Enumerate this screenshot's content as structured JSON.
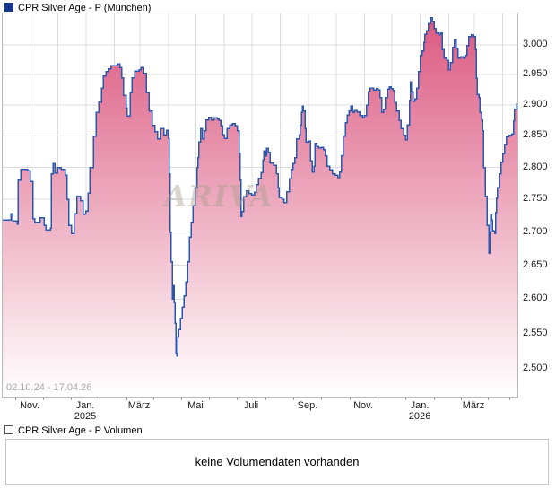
{
  "header": {
    "title": "CPR Silver Age - P (München)",
    "icon_color": "#16368c"
  },
  "volume": {
    "title": "CPR Silver Age - P Volumen",
    "message": "keine Volumendaten vorhanden"
  },
  "chart_data": {
    "type": "area",
    "title": "CPR Silver Age - P (München)",
    "date_range_label": "02.10.24 - 17.04.26",
    "start_date": "2024-10-02",
    "end_date": "2026-04-17",
    "scale": "log",
    "grid": true,
    "legend_position": "none",
    "watermark": "ARIVA",
    "line_color": "#2a56ae",
    "fill_top_color": "#dc5a82",
    "fill_bottom_color": "#ffffff",
    "grid_color": "#dcdcdc",
    "ylim": [
      2.4611,
      3.0533
    ],
    "y_ticks": [
      {
        "v": 3.0,
        "label": "3.000"
      },
      {
        "v": 2.95,
        "label": "2.950"
      },
      {
        "v": 2.9,
        "label": "2.900"
      },
      {
        "v": 2.85,
        "label": "2.850"
      },
      {
        "v": 2.8,
        "label": "2.800"
      },
      {
        "v": 2.75,
        "label": "2.750"
      },
      {
        "v": 2.7,
        "label": "2.700"
      },
      {
        "v": 2.65,
        "label": "2.650"
      },
      {
        "v": 2.6,
        "label": "2.600"
      },
      {
        "v": 2.55,
        "label": "2.550"
      },
      {
        "v": 2.5,
        "label": "2.500"
      }
    ],
    "x_ticks": [
      {
        "date": "2024-11-01",
        "label": "Nov."
      },
      {
        "date": "2025-01-01",
        "label": "Jan.",
        "sub": "2025"
      },
      {
        "date": "2025-03-01",
        "label": "März"
      },
      {
        "date": "2025-05-01",
        "label": "Mai"
      },
      {
        "date": "2025-07-01",
        "label": "Juli"
      },
      {
        "date": "2025-09-01",
        "label": "Sep."
      },
      {
        "date": "2025-11-01",
        "label": "Nov."
      },
      {
        "date": "2026-01-01",
        "label": "Jan.",
        "sub": "2026"
      },
      {
        "date": "2026-03-01",
        "label": "März"
      }
    ],
    "series": [
      {
        "name": "CPR Silver Age - P",
        "points": [
          [
            0,
            2.718
          ],
          [
            6,
            2.718
          ],
          [
            9,
            2.728
          ],
          [
            11,
            2.717
          ],
          [
            16,
            2.712
          ],
          [
            17,
            2.78
          ],
          [
            20,
            2.797
          ],
          [
            27,
            2.795
          ],
          [
            30,
            2.778
          ],
          [
            33,
            2.72
          ],
          [
            35,
            2.715
          ],
          [
            41,
            2.722
          ],
          [
            45,
            2.71
          ],
          [
            47,
            2.703
          ],
          [
            52,
            2.706
          ],
          [
            53,
            2.79
          ],
          [
            55,
            2.806
          ],
          [
            57,
            2.791
          ],
          [
            60,
            2.8
          ],
          [
            64,
            2.797
          ],
          [
            68,
            2.788
          ],
          [
            70,
            2.75
          ],
          [
            72,
            2.71
          ],
          [
            75,
            2.698
          ],
          [
            78,
            2.728
          ],
          [
            81,
            2.755
          ],
          [
            85,
            2.748
          ],
          [
            88,
            2.727
          ],
          [
            91,
            2.732
          ],
          [
            93,
            2.76
          ],
          [
            95,
            2.8
          ],
          [
            99,
            2.85
          ],
          [
            102,
            2.888
          ],
          [
            105,
            2.905
          ],
          [
            108,
            2.928
          ],
          [
            110,
            2.948
          ],
          [
            113,
            2.955
          ],
          [
            115,
            2.96
          ],
          [
            118,
            2.965
          ],
          [
            125,
            2.968
          ],
          [
            128,
            2.962
          ],
          [
            130,
            2.945
          ],
          [
            132,
            2.916
          ],
          [
            135,
            2.895
          ],
          [
            136,
            2.882
          ],
          [
            139,
            2.92
          ],
          [
            141,
            2.945
          ],
          [
            144,
            2.956
          ],
          [
            149,
            2.958
          ],
          [
            151,
            2.962
          ],
          [
            154,
            2.952
          ],
          [
            157,
            2.92
          ],
          [
            160,
            2.89
          ],
          [
            163,
            2.867
          ],
          [
            166,
            2.857
          ],
          [
            169,
            2.845
          ],
          [
            172,
            2.862
          ],
          [
            176,
            2.852
          ],
          [
            179,
            2.859
          ],
          [
            181,
            2.846
          ],
          [
            182,
            2.79
          ],
          [
            183,
            2.7
          ],
          [
            184,
            2.655
          ],
          [
            185,
            2.6
          ],
          [
            186,
            2.62
          ],
          [
            187,
            2.595
          ],
          [
            188,
            2.565
          ],
          [
            189,
            2.522
          ],
          [
            190,
            2.518
          ],
          [
            191,
            2.545
          ],
          [
            192,
            2.556
          ],
          [
            194,
            2.572
          ],
          [
            196,
            2.588
          ],
          [
            198,
            2.605
          ],
          [
            200,
            2.625
          ],
          [
            202,
            2.655
          ],
          [
            204,
            2.692
          ],
          [
            206,
            2.715
          ],
          [
            208,
            2.74
          ],
          [
            210,
            2.768
          ],
          [
            212,
            2.8
          ],
          [
            213,
            2.815
          ],
          [
            214,
            2.84
          ],
          [
            216,
            2.862
          ],
          [
            218,
            2.845
          ],
          [
            220,
            2.858
          ],
          [
            222,
            2.876
          ],
          [
            225,
            2.88
          ],
          [
            228,
            2.876
          ],
          [
            231,
            2.879
          ],
          [
            234,
            2.877
          ],
          [
            236,
            2.875
          ],
          [
            238,
            2.866
          ],
          [
            240,
            2.852
          ],
          [
            242,
            2.846
          ],
          [
            245,
            2.862
          ],
          [
            248,
            2.868
          ],
          [
            251,
            2.87
          ],
          [
            254,
            2.866
          ],
          [
            256,
            2.858
          ],
          [
            258,
            2.822
          ],
          [
            259,
            2.78
          ],
          [
            260,
            2.724
          ],
          [
            261,
            2.731
          ],
          [
            263,
            2.754
          ],
          [
            266,
            2.763
          ],
          [
            269,
            2.759
          ],
          [
            272,
            2.757
          ],
          [
            275,
            2.761
          ],
          [
            277,
            2.773
          ],
          [
            279,
            2.783
          ],
          [
            282,
            2.792
          ],
          [
            284,
            2.812
          ],
          [
            285,
            2.826
          ],
          [
            287,
            2.818
          ],
          [
            288,
            2.83
          ],
          [
            290,
            2.824
          ],
          [
            292,
            2.807
          ],
          [
            296,
            2.803
          ],
          [
            299,
            2.79
          ],
          [
            301,
            2.768
          ],
          [
            302,
            2.753
          ],
          [
            305,
            2.75
          ],
          [
            307,
            2.745
          ],
          [
            310,
            2.762
          ],
          [
            313,
            2.782
          ],
          [
            315,
            2.797
          ],
          [
            317,
            2.806
          ],
          [
            319,
            2.815
          ],
          [
            321,
            2.845
          ],
          [
            324,
            2.852
          ],
          [
            325,
            2.868
          ],
          [
            326,
            2.888
          ],
          [
            327,
            2.898
          ],
          [
            328,
            2.89
          ],
          [
            330,
            2.862
          ],
          [
            331,
            2.84
          ],
          [
            334,
            2.842
          ],
          [
            336,
            2.81
          ],
          [
            338,
            2.793
          ],
          [
            340,
            2.802
          ],
          [
            341,
            2.838
          ],
          [
            343,
            2.833
          ],
          [
            345,
            2.831
          ],
          [
            348,
            2.832
          ],
          [
            350,
            2.828
          ],
          [
            352,
            2.818
          ],
          [
            354,
            2.802
          ],
          [
            357,
            2.796
          ],
          [
            360,
            2.79
          ],
          [
            363,
            2.788
          ],
          [
            366,
            2.784
          ],
          [
            368,
            2.793
          ],
          [
            370,
            2.818
          ],
          [
            372,
            2.85
          ],
          [
            374,
            2.871
          ],
          [
            376,
            2.884
          ],
          [
            378,
            2.89
          ],
          [
            380,
            2.898
          ],
          [
            382,
            2.888
          ],
          [
            384,
            2.891
          ],
          [
            387,
            2.889
          ],
          [
            390,
            2.883
          ],
          [
            393,
            2.879
          ],
          [
            395,
            2.883
          ],
          [
            397,
            2.9
          ],
          [
            399,
            2.922
          ],
          [
            401,
            2.928
          ],
          [
            405,
            2.925
          ],
          [
            408,
            2.927
          ],
          [
            410,
            2.925
          ],
          [
            412,
            2.912
          ],
          [
            414,
            2.888
          ],
          [
            416,
            2.893
          ],
          [
            418,
            2.912
          ],
          [
            420,
            2.926
          ],
          [
            422,
            2.93
          ],
          [
            424,
            2.927
          ],
          [
            426,
            2.924
          ],
          [
            428,
            2.904
          ],
          [
            430,
            2.89
          ],
          [
            433,
            2.875
          ],
          [
            435,
            2.862
          ],
          [
            438,
            2.851
          ],
          [
            440,
            2.844
          ],
          [
            442,
            2.868
          ],
          [
            444,
            2.908
          ],
          [
            445,
            2.938
          ],
          [
            446,
            2.922
          ],
          [
            448,
            2.906
          ],
          [
            450,
            2.91
          ],
          [
            452,
            2.928
          ],
          [
            454,
            2.955
          ],
          [
            456,
            2.982
          ],
          [
            458,
            2.99
          ],
          [
            460,
            3.004
          ],
          [
            461,
            3.018
          ],
          [
            463,
            3.024
          ],
          [
            465,
            3.036
          ],
          [
            467,
            3.046
          ],
          [
            469,
            3.04
          ],
          [
            471,
            3.028
          ],
          [
            473,
            3.02
          ],
          [
            476,
            3.017
          ],
          [
            478,
            3.02
          ],
          [
            480,
            2.992
          ],
          [
            482,
            2.978
          ],
          [
            485,
            2.974
          ],
          [
            487,
            2.958
          ],
          [
            489,
            2.97
          ],
          [
            491,
            2.996
          ],
          [
            493,
            3.008
          ],
          [
            495,
            2.994
          ],
          [
            497,
            2.978
          ],
          [
            500,
            2.98
          ],
          [
            503,
            2.978
          ],
          [
            505,
            2.982
          ],
          [
            507,
            2.999
          ],
          [
            509,
            3.014
          ],
          [
            512,
            3.017
          ],
          [
            514,
            3.014
          ],
          [
            516,
            2.992
          ],
          [
            517,
            2.944
          ],
          [
            518,
            2.917
          ],
          [
            520,
            2.912
          ],
          [
            521,
            2.888
          ],
          [
            523,
            2.876
          ],
          [
            524,
            2.858
          ],
          [
            525,
            2.8
          ],
          [
            527,
            2.755
          ],
          [
            529,
            2.71
          ],
          [
            531,
            2.668
          ],
          [
            532,
            2.7
          ],
          [
            533,
            2.726
          ],
          [
            534,
            2.718
          ],
          [
            535,
            2.702
          ],
          [
            537,
            2.698
          ],
          [
            538,
            2.73
          ],
          [
            539,
            2.752
          ],
          [
            540,
            2.768
          ],
          [
            542,
            2.79
          ],
          [
            544,
            2.808
          ],
          [
            546,
            2.822
          ],
          [
            548,
            2.836
          ],
          [
            550,
            2.849
          ],
          [
            553,
            2.851
          ],
          [
            556,
            2.853
          ],
          [
            558,
            2.874
          ],
          [
            559,
            2.893
          ],
          [
            561,
            2.902
          ],
          [
            562,
            2.903
          ]
        ]
      }
    ]
  }
}
